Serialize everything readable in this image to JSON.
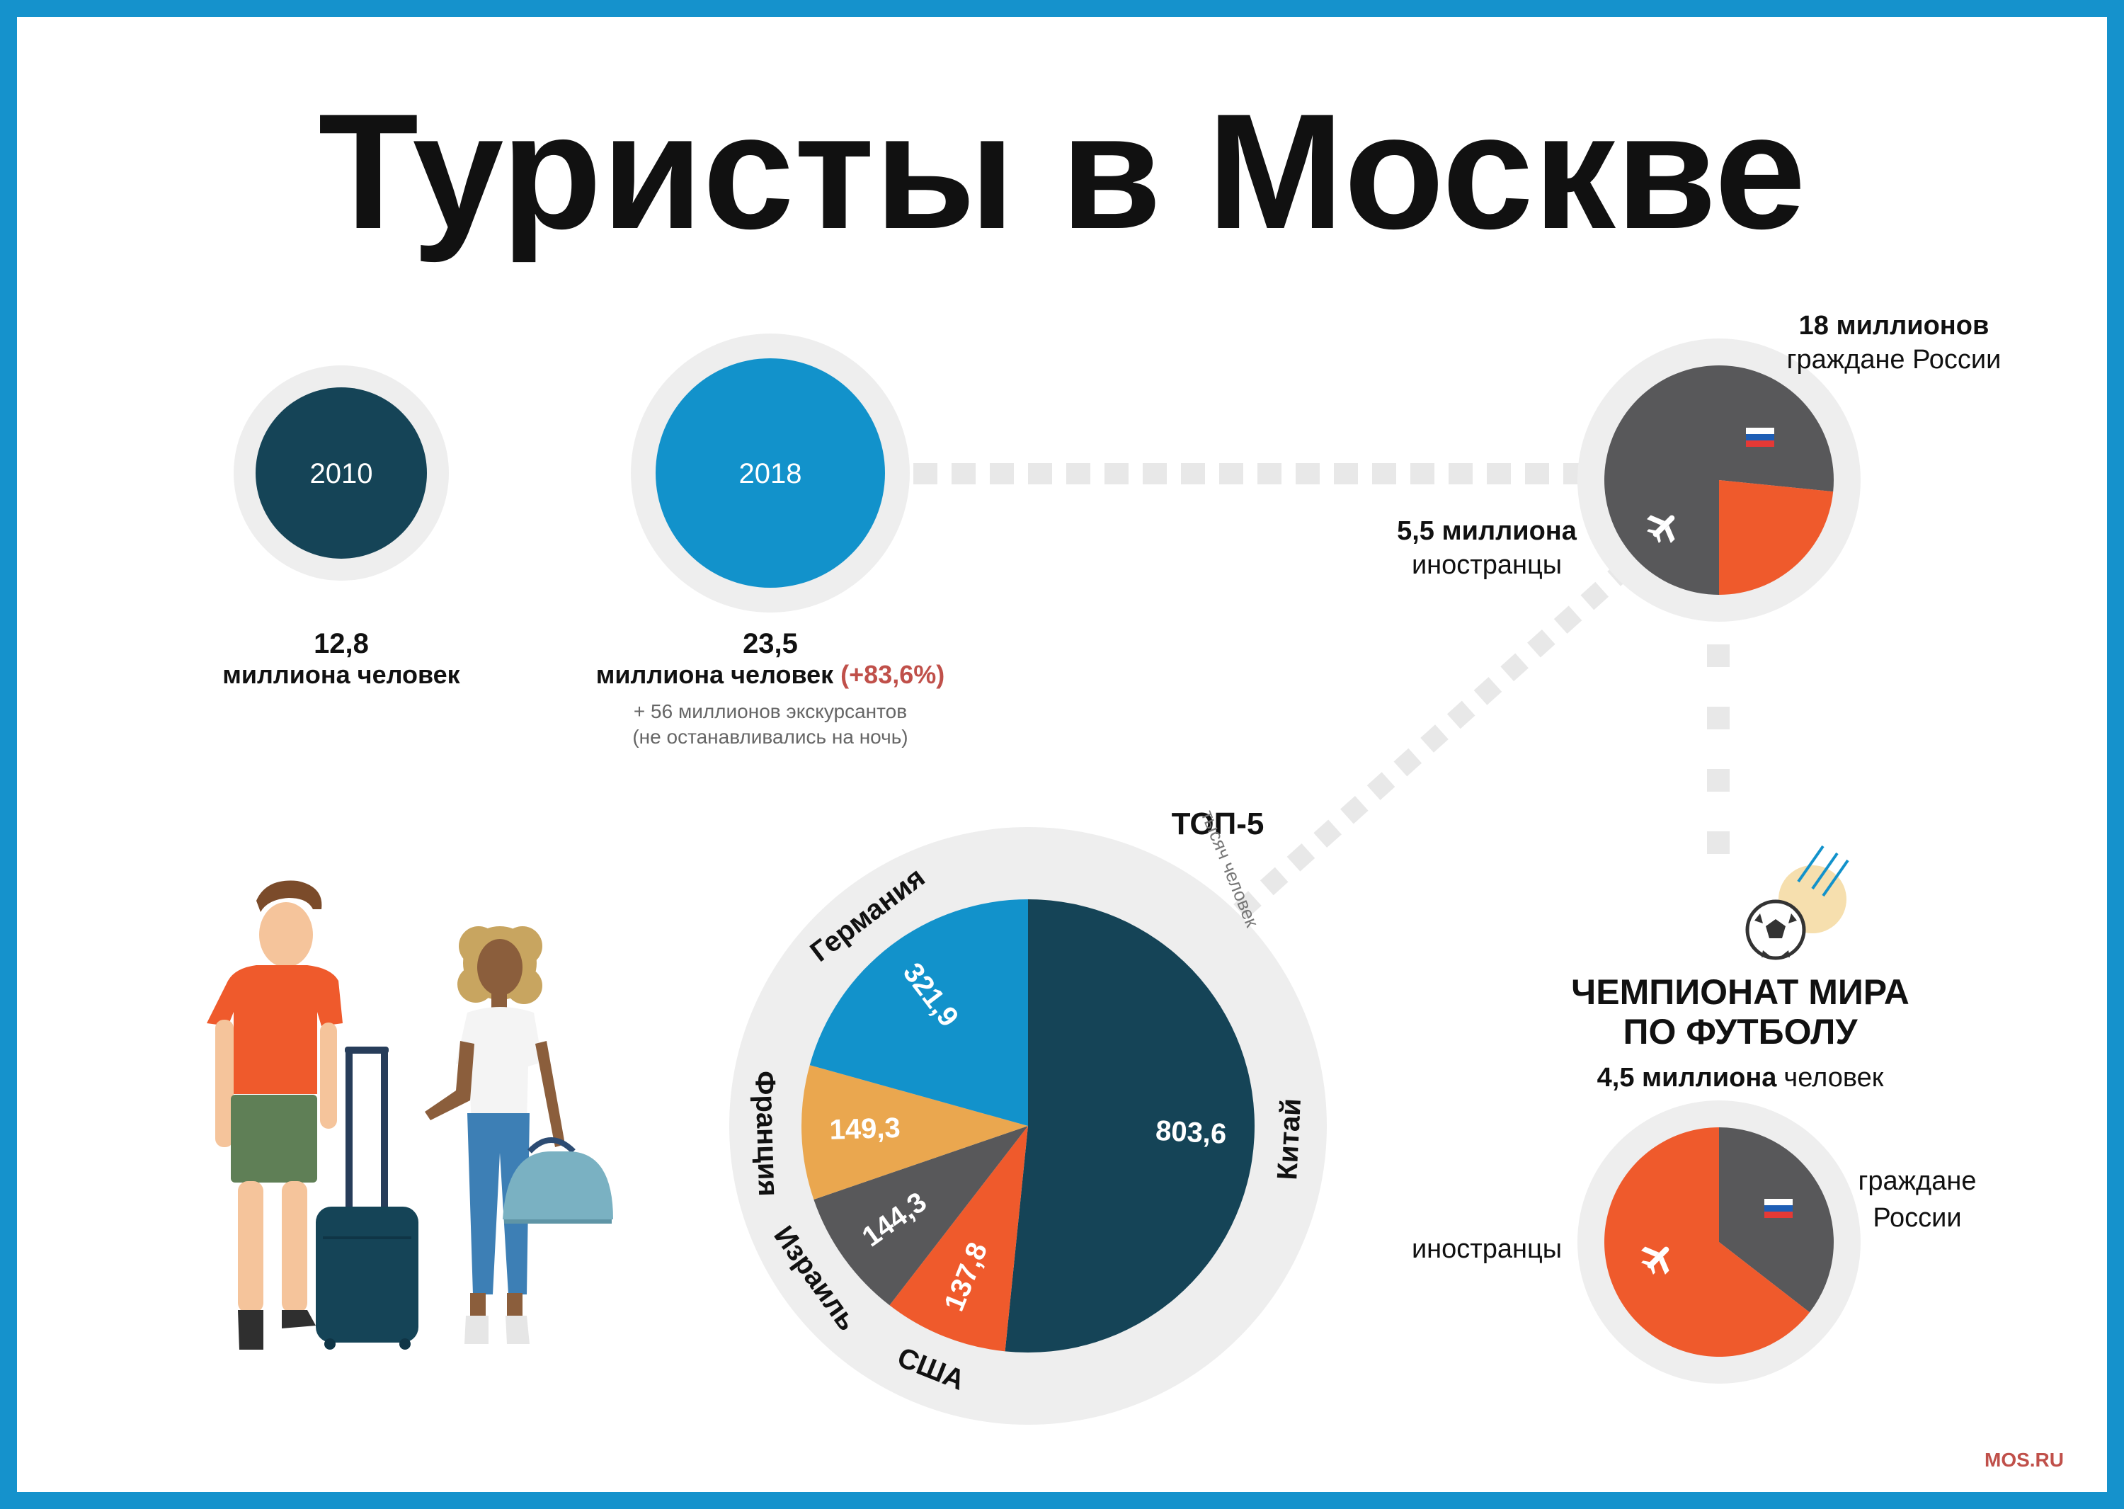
{
  "title": "Туристы в Москве",
  "years": [
    {
      "year": "2010",
      "value": "12,8",
      "unit": "миллиона человек"
    },
    {
      "year": "2018",
      "value": "23,5",
      "unit": "миллиона человек",
      "change": "(+83,6%)",
      "note1": "+ 56 миллионов экскурсантов",
      "note2": "(не останавливались на ночь)"
    }
  ],
  "split2018": {
    "russians_value": "18 миллионов",
    "russians_label": "граждане России",
    "foreigners_value": "5,5 миллиона",
    "foreigners_label": "иностранцы",
    "russians": 18,
    "foreigners": 5.5
  },
  "worldcup": {
    "title_line1": "ЧЕМПИОНАТ МИРА",
    "title_line2": "ПО ФУТБОЛУ",
    "total_value": "4,5 миллиона",
    "total_unit": "человек",
    "foreigners_label": "иностранцы",
    "russians_label_line1": "граждане",
    "russians_label_line2": "России",
    "russians_share": 0.355,
    "foreigners_share": 0.645
  },
  "chart_data": {
    "type": "pie",
    "title": "ТОП-5",
    "unit": "тысяч человек",
    "categories": [
      "Китай",
      "США",
      "Израиль",
      "Франция",
      "Германия"
    ],
    "values": [
      803.6,
      137.8,
      144.3,
      149.3,
      321.9
    ],
    "labels": [
      "803,6",
      "137,8",
      "144,3",
      "149,3",
      "321,9"
    ],
    "colors": [
      "#154457",
      "#ef5a2c",
      "#58585a",
      "#eaa74f",
      "#1292cb"
    ]
  },
  "colors": {
    "border": "#1592cc",
    "navy": "#154457",
    "blue": "#1292cb",
    "orange": "#ef5a2c",
    "gray": "#58585a",
    "ring": "#eeeeee",
    "accent_red": "#c0504a",
    "text": "#111111"
  },
  "brand": "MOS.RU"
}
